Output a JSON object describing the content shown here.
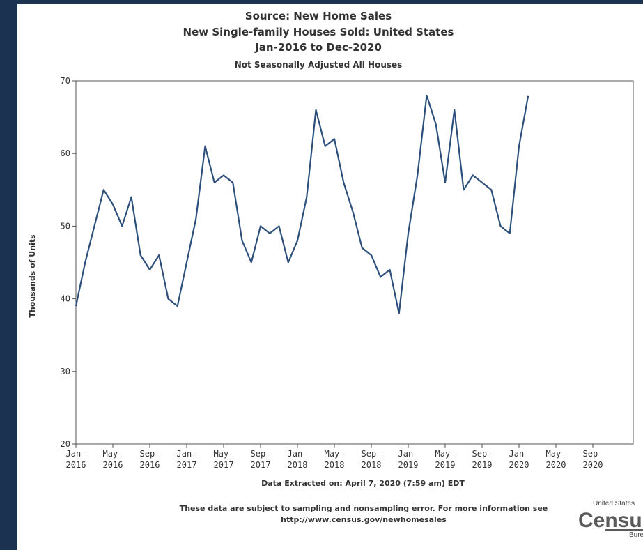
{
  "header": {
    "source_line": "Source: New Home Sales",
    "series_line": "New Single-family Houses Sold: United States",
    "range_line": "Jan-2016 to Dec-2020",
    "adjustment_line": "Not Seasonally Adjusted All Houses"
  },
  "footer": {
    "extracted": "Data Extracted on: April 7, 2020 (7:59 am) EDT",
    "note_line1": "These data are subject to sampling and nonsampling error. For more information see",
    "note_line2": "http://www.census.gov/newhomesales"
  },
  "logo": {
    "small_text": "United States",
    "big_text": "Census",
    "tail_text": "Bureau"
  },
  "colors": {
    "line": "#2d4f7c",
    "axis": "#555555",
    "page_background": "#1b3350"
  },
  "chart_data": {
    "type": "line",
    "ylabel": "Thousands of Units",
    "xlabel": "",
    "ylim": [
      20,
      70
    ],
    "yticks": [
      20,
      30,
      40,
      50,
      60,
      70
    ],
    "grid": false,
    "x_start": "2016-01",
    "x_end": "2020-09",
    "xtick_labels": [
      {
        "month": "Jan-",
        "year": "2016"
      },
      {
        "month": "May-",
        "year": "2016"
      },
      {
        "month": "Sep-",
        "year": "2016"
      },
      {
        "month": "Jan-",
        "year": "2017"
      },
      {
        "month": "May-",
        "year": "2017"
      },
      {
        "month": "Sep-",
        "year": "2017"
      },
      {
        "month": "Jan-",
        "year": "2018"
      },
      {
        "month": "May-",
        "year": "2018"
      },
      {
        "month": "Sep-",
        "year": "2018"
      },
      {
        "month": "Jan-",
        "year": "2019"
      },
      {
        "month": "May-",
        "year": "2019"
      },
      {
        "month": "Sep-",
        "year": "2019"
      },
      {
        "month": "Jan-",
        "year": "2020"
      },
      {
        "month": "May-",
        "year": "2020"
      },
      {
        "month": "Sep-",
        "year": "2020"
      }
    ],
    "series": [
      {
        "x": [
          "2016-01",
          "2016-02",
          "2016-03",
          "2016-04",
          "2016-05",
          "2016-06",
          "2016-07",
          "2016-08",
          "2016-09",
          "2016-10",
          "2016-11",
          "2016-12",
          "2017-01",
          "2017-02",
          "2017-03",
          "2017-04",
          "2017-05",
          "2017-06",
          "2017-07",
          "2017-08",
          "2017-09",
          "2017-10",
          "2017-11",
          "2017-12",
          "2018-01",
          "2018-02",
          "2018-03",
          "2018-04",
          "2018-05",
          "2018-06",
          "2018-07",
          "2018-08",
          "2018-09",
          "2018-10",
          "2018-11",
          "2018-12",
          "2019-01",
          "2019-02",
          "2019-03",
          "2019-04",
          "2019-05",
          "2019-06",
          "2019-07",
          "2019-08",
          "2019-09",
          "2019-10",
          "2019-11",
          "2019-12",
          "2020-01",
          "2020-02",
          "2020-03"
        ],
        "values": [
          39,
          45,
          50,
          55,
          53,
          50,
          54,
          46,
          44,
          46,
          40,
          39,
          45,
          51,
          61,
          56,
          57,
          56,
          48,
          45,
          50,
          49,
          50,
          45,
          48,
          54,
          66,
          61,
          62,
          56,
          52,
          47,
          46,
          43,
          44,
          38,
          49,
          57,
          68,
          64,
          56,
          66,
          55,
          57,
          56,
          55,
          50,
          49,
          61,
          68,
          null
        ]
      }
    ]
  }
}
